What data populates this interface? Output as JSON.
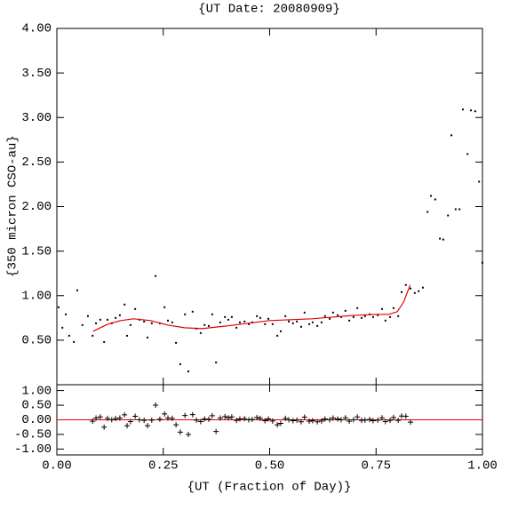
{
  "chart_data": [
    {
      "type": "scatter",
      "title": "{UT Date: 20080909}",
      "ylabel": "{350 micron CSO-au}",
      "color": "#000000",
      "x": [
        0.004,
        0.013,
        0.021,
        0.029,
        0.04,
        0.048,
        0.06,
        0.073,
        0.084,
        0.092,
        0.102,
        0.111,
        0.119,
        0.129,
        0.138,
        0.148,
        0.159,
        0.165,
        0.173,
        0.184,
        0.194,
        0.205,
        0.213,
        0.223,
        0.232,
        0.242,
        0.253,
        0.261,
        0.271,
        0.28,
        0.29,
        0.301,
        0.309,
        0.319,
        0.328,
        0.338,
        0.347,
        0.357,
        0.365,
        0.374,
        0.384,
        0.395,
        0.403,
        0.411,
        0.422,
        0.43,
        0.441,
        0.451,
        0.459,
        0.47,
        0.478,
        0.489,
        0.497,
        0.507,
        0.518,
        0.526,
        0.537,
        0.545,
        0.555,
        0.564,
        0.574,
        0.582,
        0.593,
        0.601,
        0.612,
        0.622,
        0.63,
        0.641,
        0.649,
        0.66,
        0.668,
        0.678,
        0.687,
        0.697,
        0.706,
        0.716,
        0.724,
        0.735,
        0.743,
        0.754,
        0.764,
        0.772,
        0.783,
        0.791,
        0.802,
        0.81,
        0.82,
        0.831,
        0.841,
        0.85,
        0.86,
        0.871,
        0.879,
        0.889,
        0.9,
        0.908,
        0.919,
        0.927,
        0.937,
        0.946,
        0.954,
        0.965,
        0.973,
        0.983,
        0.992,
        1.0
      ],
      "values": [
        0.87,
        0.64,
        0.79,
        0.55,
        0.48,
        1.06,
        0.67,
        0.77,
        0.55,
        0.69,
        0.73,
        0.48,
        0.73,
        0.69,
        0.75,
        0.78,
        0.9,
        0.55,
        0.67,
        0.85,
        0.73,
        0.71,
        0.53,
        0.69,
        1.22,
        0.69,
        0.87,
        0.72,
        0.7,
        0.47,
        0.23,
        0.79,
        0.15,
        0.82,
        0.63,
        0.58,
        0.67,
        0.66,
        0.79,
        0.25,
        0.7,
        0.76,
        0.73,
        0.76,
        0.64,
        0.7,
        0.71,
        0.68,
        0.7,
        0.77,
        0.75,
        0.68,
        0.74,
        0.68,
        0.55,
        0.6,
        0.77,
        0.71,
        0.69,
        0.71,
        0.65,
        0.81,
        0.68,
        0.7,
        0.66,
        0.7,
        0.77,
        0.74,
        0.81,
        0.78,
        0.76,
        0.83,
        0.72,
        0.76,
        0.86,
        0.75,
        0.77,
        0.79,
        0.76,
        0.78,
        0.85,
        0.72,
        0.76,
        0.86,
        0.77,
        1.04,
        1.12,
        1.08,
        1.03,
        1.05,
        1.09,
        1.94,
        2.12,
        2.08,
        1.64,
        1.63,
        1.9,
        2.8,
        1.97,
        1.97,
        3.09,
        2.59,
        3.08,
        3.07,
        2.28,
        1.37
      ],
      "fit": {
        "color": "#e00000",
        "x": [
          0.085,
          0.12,
          0.15,
          0.18,
          0.22,
          0.26,
          0.3,
          0.34,
          0.4,
          0.45,
          0.5,
          0.55,
          0.6,
          0.65,
          0.7,
          0.75,
          0.78,
          0.8,
          0.815,
          0.83
        ],
        "values": [
          0.6,
          0.68,
          0.72,
          0.74,
          0.72,
          0.67,
          0.64,
          0.63,
          0.66,
          0.69,
          0.72,
          0.73,
          0.74,
          0.76,
          0.78,
          0.79,
          0.79,
          0.82,
          0.93,
          1.12
        ]
      },
      "xlim": [
        0,
        1
      ],
      "ylim": [
        0,
        4
      ],
      "yticks": [
        {
          "value": 0.5,
          "label": "0.50"
        },
        {
          "value": 1,
          "label": "1.00"
        },
        {
          "value": 1.5,
          "label": "1.50"
        },
        {
          "value": 2,
          "label": "2.00"
        },
        {
          "value": 2.5,
          "label": "2.50"
        },
        {
          "value": 3,
          "label": "3.00"
        },
        {
          "value": 3.5,
          "label": "3.50"
        },
        {
          "value": 4,
          "label": "4.00"
        }
      ]
    },
    {
      "type": "scatter",
      "marker": "plus",
      "xlabel": "{UT (Fraction of Day)}",
      "color": "#000000",
      "x": [
        0.084,
        0.092,
        0.102,
        0.111,
        0.119,
        0.129,
        0.138,
        0.148,
        0.159,
        0.165,
        0.173,
        0.184,
        0.194,
        0.205,
        0.213,
        0.223,
        0.232,
        0.242,
        0.253,
        0.261,
        0.271,
        0.28,
        0.29,
        0.301,
        0.309,
        0.319,
        0.328,
        0.338,
        0.347,
        0.357,
        0.365,
        0.374,
        0.384,
        0.395,
        0.403,
        0.411,
        0.422,
        0.43,
        0.441,
        0.451,
        0.459,
        0.47,
        0.478,
        0.489,
        0.497,
        0.507,
        0.518,
        0.526,
        0.537,
        0.545,
        0.555,
        0.564,
        0.574,
        0.582,
        0.593,
        0.601,
        0.612,
        0.622,
        0.63,
        0.641,
        0.649,
        0.66,
        0.668,
        0.678,
        0.687,
        0.697,
        0.706,
        0.716,
        0.724,
        0.735,
        0.743,
        0.754,
        0.764,
        0.772,
        0.783,
        0.791,
        0.802,
        0.81,
        0.82,
        0.831
      ],
      "values": [
        -0.05,
        0.06,
        0.1,
        -0.25,
        0.05,
        0.0,
        0.04,
        0.06,
        0.17,
        -0.2,
        -0.06,
        0.12,
        0.0,
        -0.02,
        -0.2,
        -0.01,
        0.5,
        0.02,
        0.2,
        0.06,
        0.05,
        -0.17,
        -0.42,
        0.15,
        -0.5,
        0.18,
        -0.01,
        -0.06,
        0.03,
        0.02,
        0.14,
        -0.4,
        0.06,
        0.11,
        0.07,
        0.1,
        -0.02,
        0.03,
        0.04,
        0.0,
        0.01,
        0.08,
        0.05,
        -0.03,
        0.03,
        -0.04,
        -0.17,
        -0.12,
        0.05,
        0.0,
        -0.03,
        -0.01,
        -0.07,
        0.09,
        -0.05,
        -0.03,
        -0.07,
        -0.04,
        0.03,
        0.0,
        0.06,
        0.03,
        0.0,
        0.07,
        -0.05,
        0.0,
        0.1,
        -0.02,
        -0.01,
        0.01,
        -0.03,
        -0.01,
        0.07,
        -0.06,
        -0.02,
        0.08,
        -0.02,
        0.13,
        0.12,
        -0.08
      ],
      "reference_line": {
        "value": 0,
        "color": "#e00000"
      },
      "xlim": [
        0,
        1
      ],
      "ylim": [
        -1.2,
        1.2
      ],
      "xticks": [
        {
          "value": 0,
          "label": "0.00"
        },
        {
          "value": 0.25,
          "label": "0.25"
        },
        {
          "value": 0.5,
          "label": "0.50"
        },
        {
          "value": 0.75,
          "label": "0.75"
        },
        {
          "value": 1,
          "label": "1.00"
        }
      ],
      "yticks": [
        {
          "value": -1,
          "label": "-1.00"
        },
        {
          "value": -0.5,
          "label": "-0.50"
        },
        {
          "value": 0,
          "label": "0.00"
        },
        {
          "value": 0.5,
          "label": "0.50"
        },
        {
          "value": 1,
          "label": "1.00"
        }
      ]
    }
  ]
}
